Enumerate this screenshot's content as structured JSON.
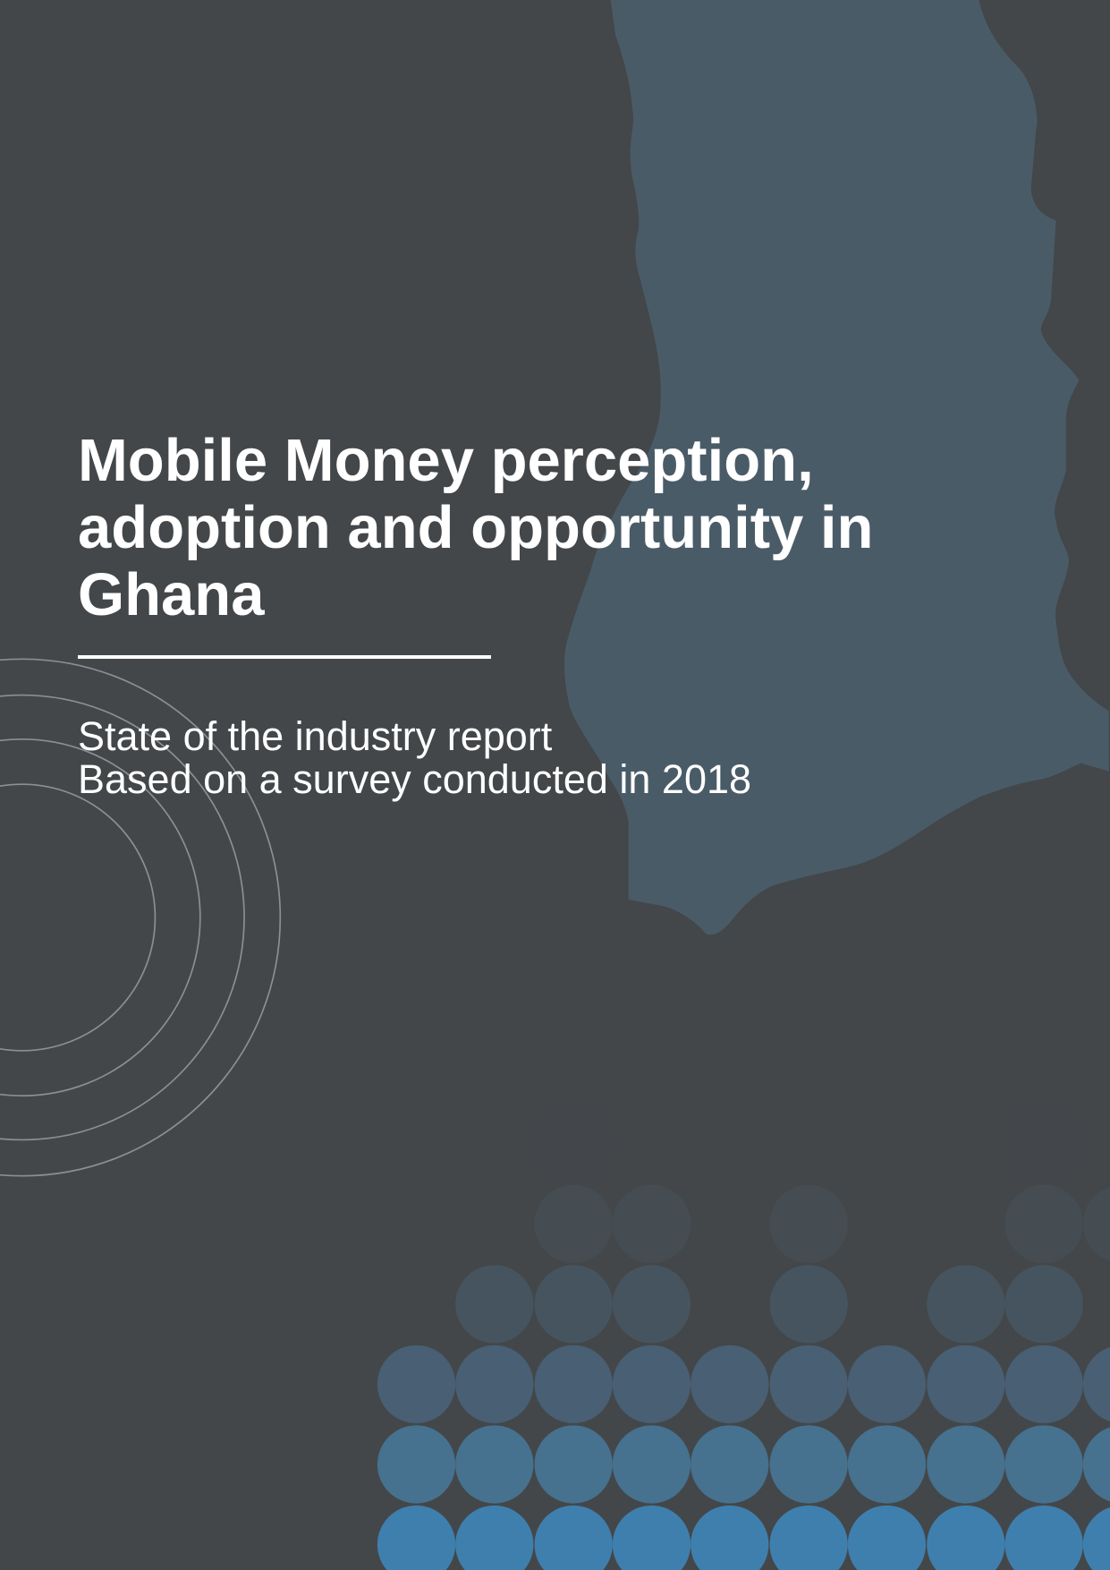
{
  "cover": {
    "title_lines": [
      "Mobile Money perception,",
      "adoption and opportunity in",
      "Ghana"
    ],
    "subtitle_lines": [
      "State of the industry report",
      "Based on a survey conducted in 2018"
    ]
  }
}
